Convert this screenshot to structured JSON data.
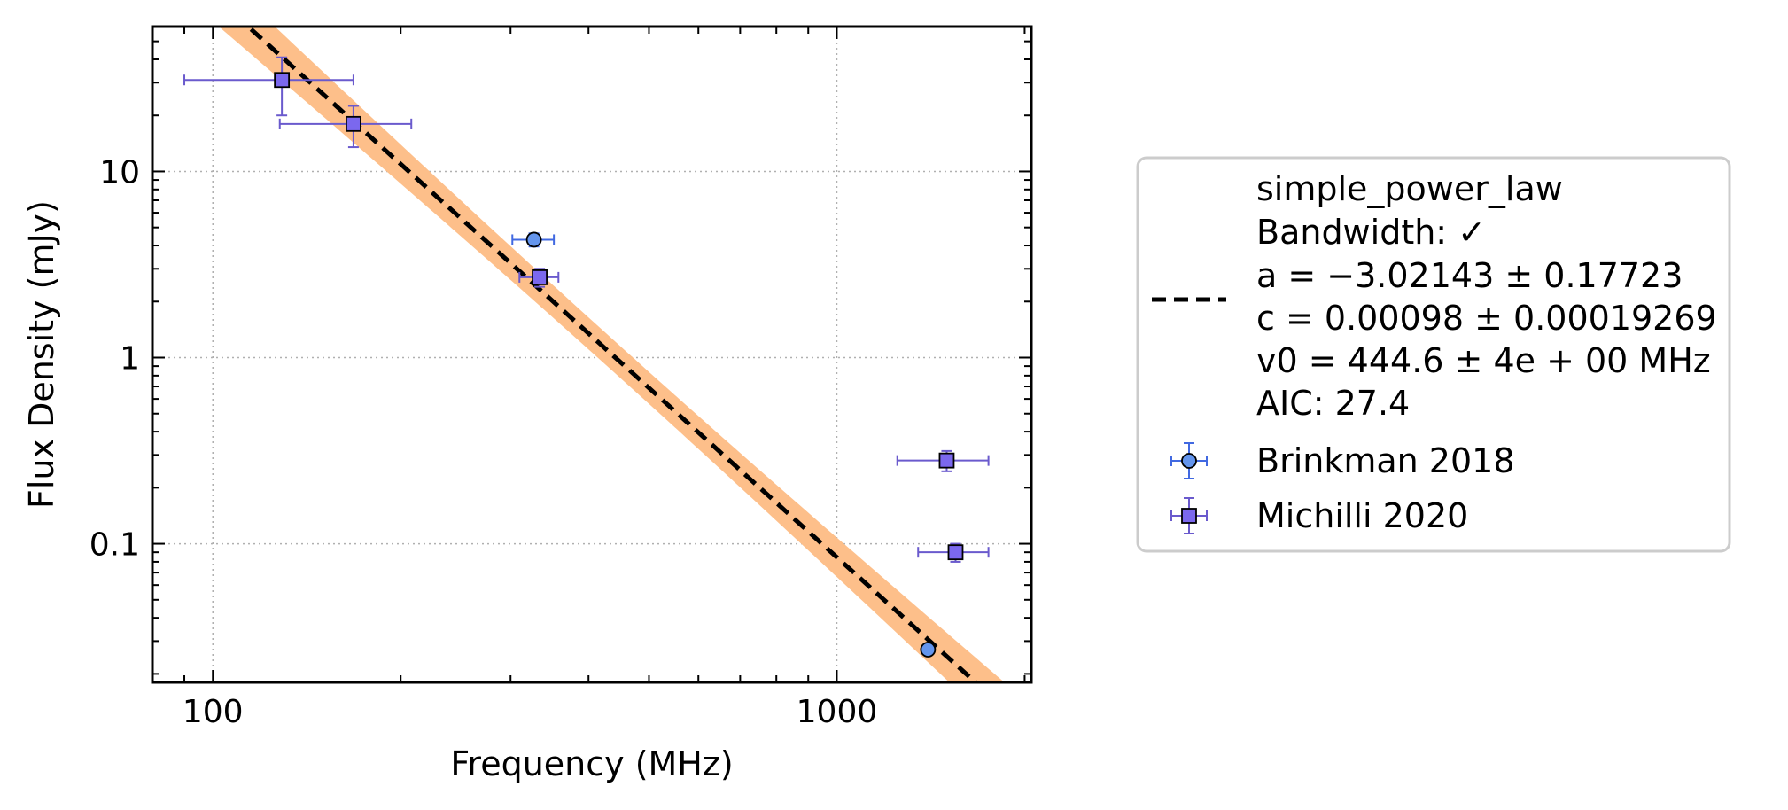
{
  "chart_data": {
    "type": "scatter",
    "xlabel": "Frequency (MHz)",
    "ylabel": "Flux Density (mJy)",
    "xscale": "log",
    "yscale": "log",
    "xlim": [
      80,
      2050
    ],
    "ylim": [
      0.018,
      60
    ],
    "grid": true,
    "legend_position": "right outside",
    "x_tick_labels": [
      {
        "value": 100,
        "label": "100"
      },
      {
        "value": 1000,
        "label": "1000"
      }
    ],
    "y_tick_labels": [
      {
        "value": 0.1,
        "label": "0.1"
      },
      {
        "value": 1,
        "label": "1"
      },
      {
        "value": 10,
        "label": "10"
      }
    ],
    "fit": {
      "model": "simple_power_law",
      "legend_lines": [
        "simple_power_law",
        "Bandwidth: ✓",
        "a = −3.02143 ± 0.17723",
        "c = 0.00098 ± 0.00019269",
        "v0 = 444.6 ± 4e + 00 MHz",
        "AIC: 27.4"
      ],
      "a": -3.02143,
      "a_err": 0.17723,
      "c": 0.00098,
      "c_err": 0.00019269,
      "v0": 444.6,
      "aic": 27.4,
      "line_color": "#000000",
      "band_color": "#fdbf8a",
      "line_style": "dashed"
    },
    "series": [
      {
        "name": "Brinkman 2018",
        "marker": "circle",
        "color": "#6495ed",
        "errcolor": "#4169e1",
        "points": [
          {
            "x": 327,
            "y": 4.3,
            "xerr": [
              25,
              25
            ],
            "yerr": [
              0.35,
              0.35
            ]
          },
          {
            "x": 1400,
            "y": 0.027,
            "xerr": [
              0,
              0
            ],
            "yerr": [
              0.001,
              0.001
            ]
          }
        ]
      },
      {
        "name": "Michilli 2020",
        "marker": "square",
        "color": "#7b68ee",
        "errcolor": "#6a5acd",
        "points": [
          {
            "x": 129,
            "y": 31,
            "xerr": [
              39,
              39
            ],
            "yerr": [
              11,
              10
            ]
          },
          {
            "x": 168,
            "y": 18,
            "xerr": [
              40,
              40
            ],
            "yerr": [
              4.5,
              4.5
            ]
          },
          {
            "x": 334,
            "y": 2.7,
            "xerr": [
              24,
              24
            ],
            "yerr": [
              0.3,
              0.3
            ]
          },
          {
            "x": 1500,
            "y": 0.28,
            "xerr": [
              250,
              250
            ],
            "yerr": [
              0.035,
              0.035
            ]
          },
          {
            "x": 1550,
            "y": 0.09,
            "xerr": [
              200,
              200
            ],
            "yerr": [
              0.01,
              0.01
            ]
          }
        ]
      }
    ]
  }
}
